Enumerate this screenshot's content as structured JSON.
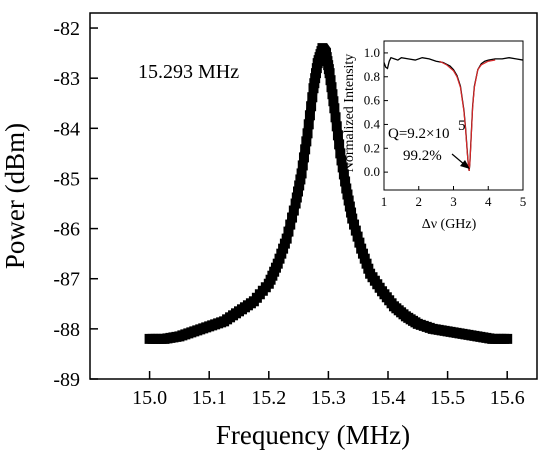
{
  "chart_data": [
    {
      "type": "scatter",
      "xlabel": "Frequency (MHz)",
      "ylabel": "Power (dBm)",
      "xlim": [
        14.9,
        15.65
      ],
      "ylim": [
        -89,
        -81.7
      ],
      "xticks": [
        "15.0",
        "15.1",
        "15.2",
        "15.3",
        "15.4",
        "15.5",
        "15.6"
      ],
      "yticks": [
        "-82",
        "-83",
        "-84",
        "-85",
        "-86",
        "-87",
        "-88",
        "-89"
      ],
      "annotation": "15.293 MHz",
      "series": [
        {
          "marker": "square",
          "color": "#000000",
          "x": [
            15.0,
            15.025,
            15.05,
            15.075,
            15.1,
            15.125,
            15.15,
            15.175,
            15.2,
            15.215,
            15.23,
            15.245,
            15.255,
            15.265,
            15.275,
            15.282,
            15.29,
            15.296,
            15.302,
            15.31,
            15.32,
            15.33,
            15.34,
            15.355,
            15.37,
            15.39,
            15.41,
            15.43,
            15.45,
            15.475,
            15.5,
            15.525,
            15.55,
            15.575,
            15.6
          ],
          "y": [
            -88.2,
            -88.2,
            -88.15,
            -88.05,
            -87.95,
            -87.85,
            -87.65,
            -87.45,
            -87.1,
            -86.7,
            -86.2,
            -85.5,
            -84.9,
            -84.1,
            -83.2,
            -82.7,
            -82.4,
            -82.5,
            -82.9,
            -83.6,
            -84.5,
            -85.2,
            -85.8,
            -86.4,
            -86.9,
            -87.25,
            -87.55,
            -87.75,
            -87.9,
            -88.0,
            -88.05,
            -88.1,
            -88.15,
            -88.2,
            -88.2
          ]
        }
      ]
    },
    {
      "type": "line",
      "xlabel": "Δν (GHz)",
      "ylabel": "Normalized Intensity",
      "xlim": [
        1,
        5
      ],
      "ylim": [
        -0.15,
        1.1
      ],
      "xticks": [
        "1",
        "2",
        "3",
        "4",
        "5"
      ],
      "yticks": [
        "0.0",
        "0.2",
        "0.4",
        "0.6",
        "0.8",
        "1.0"
      ],
      "annotations": [
        "Q=9.2×10",
        "5",
        "99.2%"
      ],
      "series": [
        {
          "color": "#000000",
          "x": [
            1.0,
            1.05,
            1.1,
            1.15,
            1.2,
            1.3,
            1.4,
            1.5,
            1.7,
            1.9,
            2.1,
            2.3,
            2.5,
            2.7,
            2.9,
            3.0,
            3.1,
            3.2,
            3.3,
            3.35,
            3.4,
            3.43,
            3.45,
            3.47,
            3.5,
            3.55,
            3.6,
            3.7,
            3.8,
            3.9,
            4.0,
            4.2,
            4.4,
            4.6,
            4.8,
            5.0
          ],
          "y": [
            0.92,
            0.88,
            0.87,
            0.93,
            0.96,
            0.95,
            0.94,
            0.96,
            0.95,
            0.94,
            0.96,
            0.95,
            0.93,
            0.92,
            0.89,
            0.86,
            0.81,
            0.72,
            0.52,
            0.36,
            0.16,
            0.05,
            0.01,
            0.07,
            0.25,
            0.55,
            0.72,
            0.86,
            0.91,
            0.93,
            0.94,
            0.95,
            0.95,
            0.96,
            0.95,
            0.94
          ]
        },
        {
          "color": "#d62728",
          "x": [
            2.6,
            2.8,
            3.0,
            3.1,
            3.2,
            3.3,
            3.35,
            3.4,
            3.43,
            3.45,
            3.47,
            3.5,
            3.55,
            3.6,
            3.7,
            3.8,
            4.0,
            4.2
          ],
          "y": [
            0.93,
            0.9,
            0.85,
            0.8,
            0.71,
            0.51,
            0.35,
            0.15,
            0.05,
            0.01,
            0.07,
            0.24,
            0.54,
            0.71,
            0.86,
            0.9,
            0.93,
            0.94
          ]
        }
      ]
    }
  ]
}
